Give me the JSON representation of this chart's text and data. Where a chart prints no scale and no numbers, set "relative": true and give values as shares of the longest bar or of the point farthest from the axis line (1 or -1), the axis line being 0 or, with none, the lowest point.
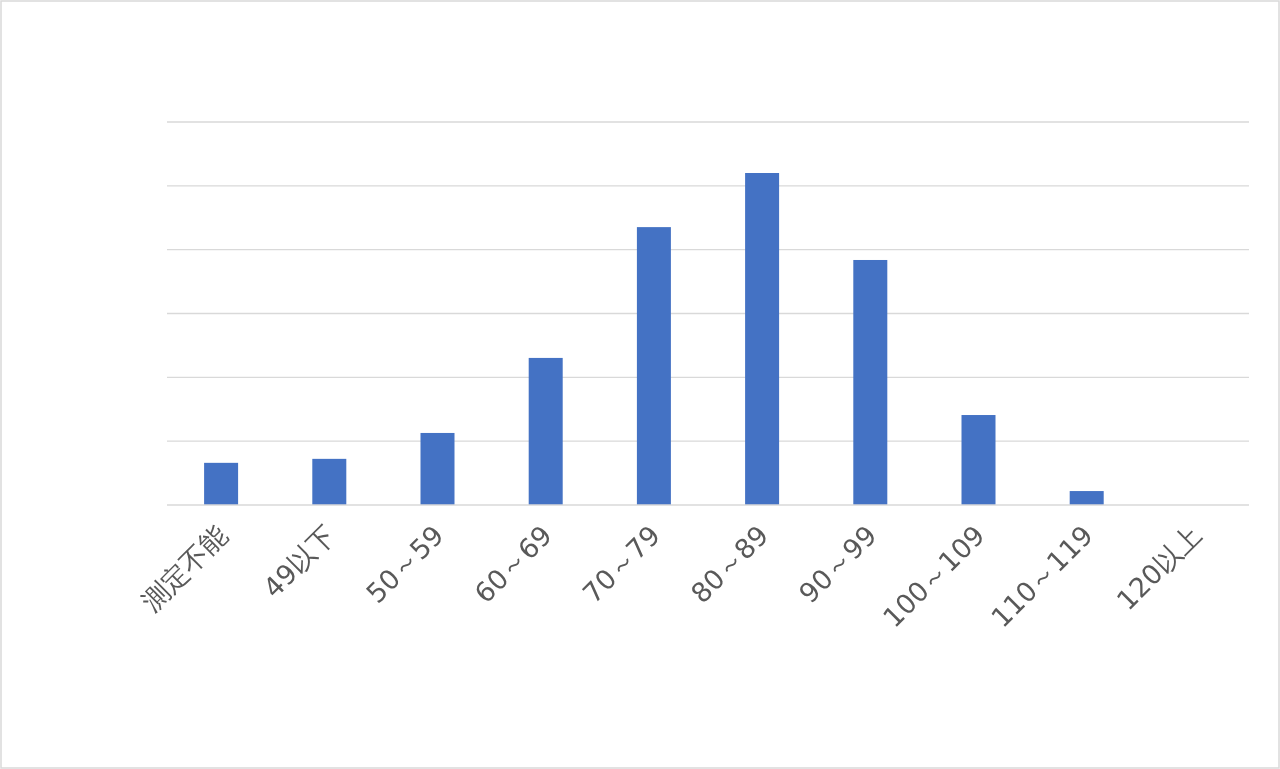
{
  "chart_data": {
    "type": "bar",
    "relative": true,
    "categories": [
      "測定不能",
      "49以下",
      "50～59",
      "60～69",
      "70～79",
      "80～89",
      "90～99",
      "100～109",
      "110～119",
      "120以上"
    ],
    "values": [
      0.127,
      0.139,
      0.217,
      0.443,
      0.837,
      1,
      0.738,
      0.271,
      0.042,
      0
    ],
    "color": "#4472c4",
    "grid": true
  }
}
